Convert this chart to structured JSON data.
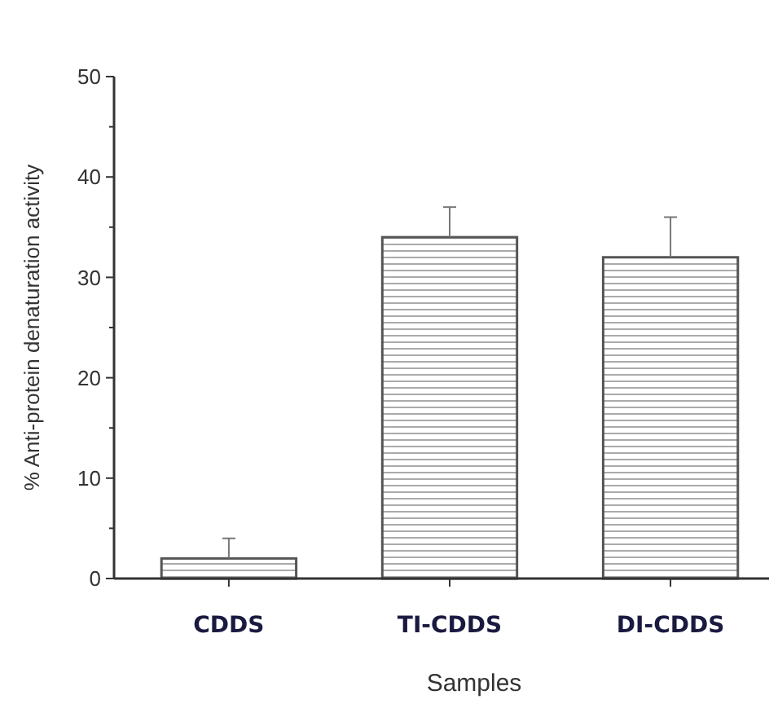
{
  "chart_data": {
    "type": "bar",
    "xlabel": "Samples",
    "ylabel": "% Anti-protein denaturation activity",
    "categories": [
      "CDDS",
      "TI-CDDS",
      "DI-CDDS"
    ],
    "values": [
      2,
      34,
      32
    ],
    "errors": [
      2,
      3,
      4
    ],
    "color": "#555555",
    "ylim": [
      0,
      50
    ],
    "yticks": [
      0,
      {
        "value": 5,
        "label": null
      },
      10,
      {
        "value": 15,
        "label": null
      },
      20,
      {
        "value": 25,
        "label": null
      },
      30,
      {
        "value": 35,
        "label": null
      },
      40,
      {
        "value": 45,
        "label": null
      },
      50
    ],
    "grid": false
  }
}
